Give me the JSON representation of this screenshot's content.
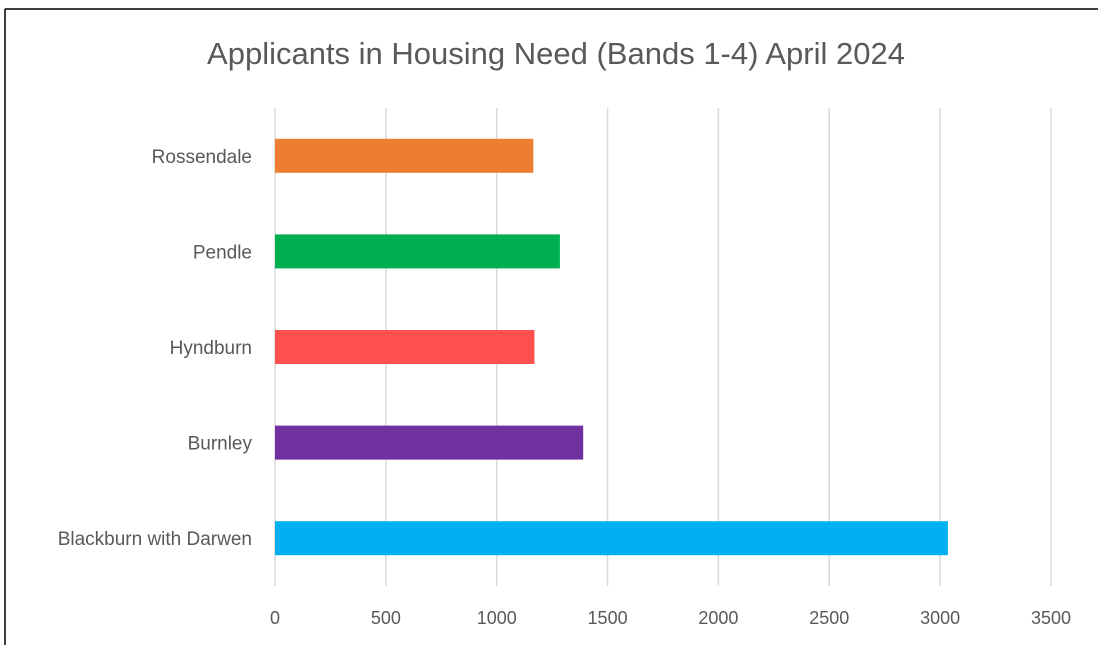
{
  "chart_data": {
    "type": "bar",
    "orientation": "horizontal",
    "title": "Applicants in Housing Need (Bands 1-4) April 2024",
    "categories": [
      "Rossendale",
      "Pendle",
      "Hyndburn",
      "Burnley",
      "Blackburn with Darwen"
    ],
    "values": [
      1165,
      1285,
      1170,
      1390,
      3035
    ],
    "bar_colors": [
      "#ED7D31",
      "#00B050",
      "#FF5050",
      "#7030A0",
      "#00B0F0"
    ],
    "xlim": [
      0,
      3500
    ],
    "x_ticks": [
      "0",
      "500",
      "1000",
      "1500",
      "2000",
      "2500",
      "3000",
      "3500"
    ],
    "x_tick_values": [
      0,
      500,
      1000,
      1500,
      2000,
      2500,
      3000,
      3500
    ],
    "xlabel": "",
    "ylabel": "",
    "grid": "vertical",
    "legend": "none"
  },
  "colors": {
    "gridline": "#D9D9D9",
    "text": "#595959",
    "title": "#595959",
    "frame": "#000000"
  }
}
